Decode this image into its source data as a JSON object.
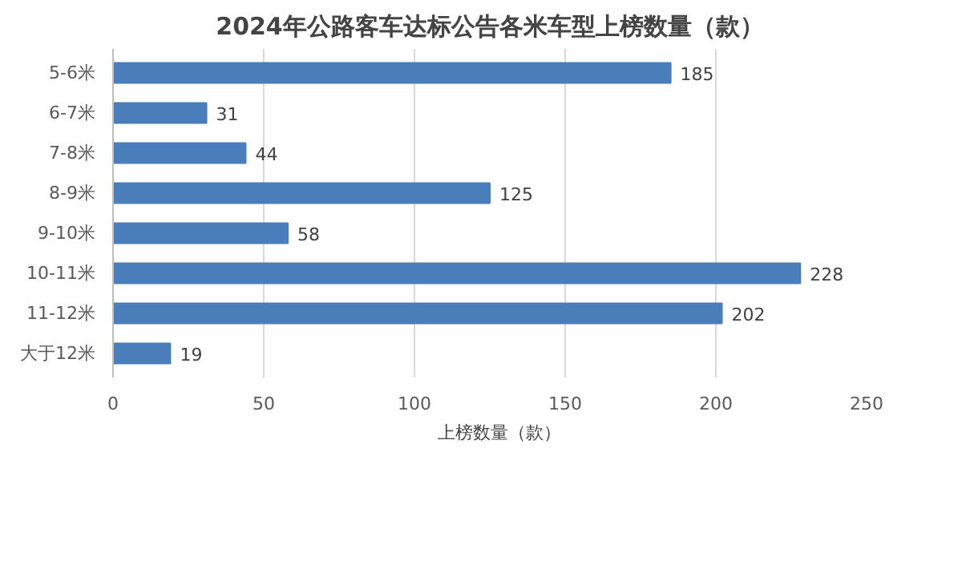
{
  "chart_data": {
    "type": "bar",
    "orientation": "horizontal",
    "title": "2024年公路客车达标公告各米车型上榜数量（款）",
    "categories": [
      "5-6米",
      "6-7米",
      "7-8米",
      "8-9米",
      "9-10米",
      "10-11米",
      "11-12米",
      "大于12米"
    ],
    "series": [
      {
        "name": "上榜数量（款）",
        "color": "#4a7ebb",
        "values": [
          185,
          31,
          44,
          125,
          58,
          228,
          202,
          19
        ]
      }
    ],
    "xlim": [
      0,
      250
    ],
    "xticks": [
      0,
      50,
      100,
      150,
      200,
      250
    ],
    "grid": "x",
    "legend": "bottom",
    "data_labels": true
  }
}
